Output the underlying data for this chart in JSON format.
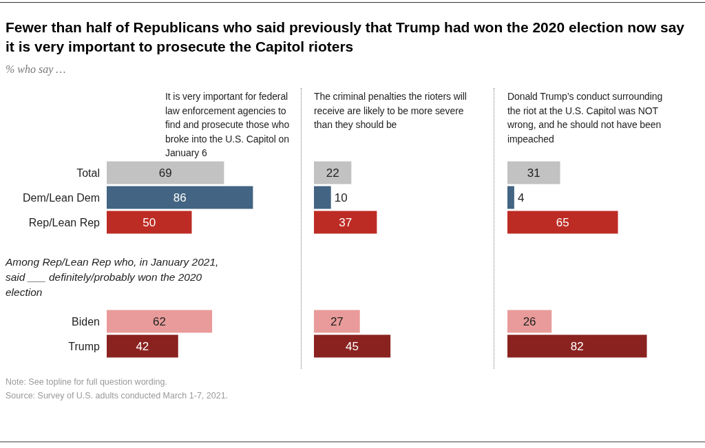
{
  "chart_data": [
    {
      "type": "bar",
      "orientation": "horizontal",
      "title": "Fewer than half of Republicans who said previously that Trump had won the 2020 election now say it is very important to prosecute the Capitol rioters",
      "subtitle": "% who say …",
      "categories": [
        "Total",
        "Dem/Lean Dem",
        "Rep/Lean Rep",
        null,
        null,
        null,
        "Biden",
        "Trump"
      ],
      "values": [
        69,
        86,
        50,
        null,
        null,
        null,
        62,
        42
      ],
      "colors": [
        "#c2c2c2",
        "#436482",
        "#bd2c24",
        "#c2c2c2",
        "#c2c2c2",
        "#c2c2c2",
        "#e89b9a",
        "#8a2220"
      ],
      "data_labels": true,
      "tick_labels": "y",
      "annotations": [
        "It is very important for federal law enforcement agencies to find and prosecute those who broke into the U.S. Capitol on January 6",
        "Among Rep/Lean Rep who, in January 2021, said ___ definitely/probably won the 2020 election",
        "Note: See topline for full question wording.",
        "Source: Survey of U.S. adults conducted March 1-7, 2021."
      ]
    },
    {
      "type": "bar",
      "orientation": "horizontal",
      "categories": [
        null,
        null,
        null,
        null,
        null,
        null,
        null,
        null
      ],
      "values": [
        22,
        10,
        37,
        null,
        null,
        null,
        27,
        45
      ],
      "colors": [
        "#c2c2c2",
        "#436482",
        "#bd2c24",
        "#c2c2c2",
        "#c2c2c2",
        "#c2c2c2",
        "#e89b9a",
        "#8a2220"
      ],
      "data_labels": true,
      "tick_labels": false,
      "annotations": [
        "The criminal penalties the rioters will receive are likely to be more severe than they should be"
      ]
    },
    {
      "type": "bar",
      "orientation": "horizontal",
      "categories": [
        null,
        null,
        null,
        null,
        null,
        null,
        null,
        null
      ],
      "values": [
        31,
        4,
        65,
        null,
        null,
        null,
        26,
        82
      ],
      "colors": [
        "#c2c2c2",
        "#436482",
        "#bd2c24",
        "#c2c2c2",
        "#c2c2c2",
        "#c2c2c2",
        "#e89b9a",
        "#8a2220"
      ],
      "data_labels": true,
      "tick_labels": false,
      "annotations": [
        "Donald Trump’s conduct surrounding the riot at the U.S. Capitol was NOT wrong, and he should not have been impeached"
      ]
    }
  ]
}
